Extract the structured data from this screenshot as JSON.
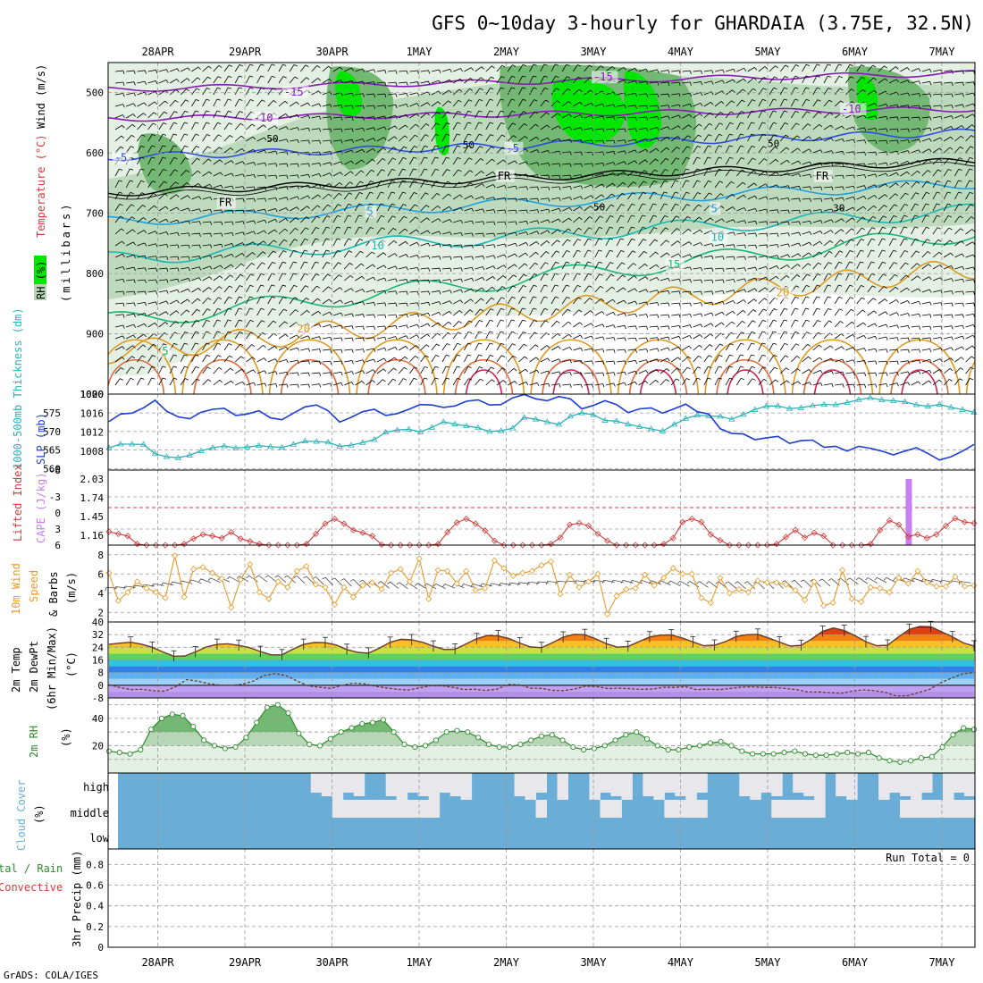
{
  "title": "GFS 0~10day 3-hourly for GHARDAIA (3.75E, 32.5N)",
  "credit": "GrADS: COLA/IGES",
  "dates": [
    "28APR",
    "29APR",
    "30APR",
    "1MAY",
    "2MAY",
    "3MAY",
    "4MAY",
    "5MAY",
    "6MAY",
    "7MAY"
  ],
  "colors": {
    "rh_light": "#e3f0e3",
    "rh_mid": "#b6d6b6",
    "rh_dark": "#73b873",
    "rh_bright": "#00e600",
    "slp": "#1c3fd0",
    "thickness": "#2cb0b8",
    "lifted": "#d23c3c",
    "cape": "#c880f0",
    "wind10": "#e89a28",
    "temp": "#6a3a28",
    "rh2m": "#2e8b2e",
    "cloud": "#6aaed8",
    "cloud_gap": "#e8e8ec"
  },
  "chart_data": [
    {
      "type": "heatmap",
      "panel": "upper-air",
      "ylabel": [
        "RH (%)",
        "Temperature (°C)",
        "Wind (m/s)",
        "(millibars)"
      ],
      "yticks": [
        500,
        600,
        700,
        800,
        900,
        1000
      ],
      "ylim": [
        1000,
        450
      ],
      "isotherm_labels": [
        {
          "t": 1.45,
          "p": 505,
          "text": "-15",
          "color": "#8a1ab8"
        },
        {
          "t": 5.0,
          "p": 480,
          "text": "-15",
          "color": "#8a1ab8"
        },
        {
          "t": 1.1,
          "p": 548,
          "text": "-10",
          "color": "#8a1ab8"
        },
        {
          "t": 7.85,
          "p": 533,
          "text": "-10",
          "color": "#8a1ab8"
        },
        {
          "t": -0.5,
          "p": 614,
          "text": "-5",
          "color": "#2d4ee0"
        },
        {
          "t": 4.0,
          "p": 598,
          "text": "-5",
          "color": "#2d4ee0"
        },
        {
          "t": 0.7,
          "p": 688,
          "text": "FR",
          "color": "#000000"
        },
        {
          "t": 3.9,
          "p": 644,
          "text": "FR",
          "color": "#000000"
        },
        {
          "t": 7.55,
          "p": 644,
          "text": "FR",
          "color": "#000000"
        },
        {
          "t": 2.4,
          "p": 703,
          "text": "5",
          "color": "#1fa0e0"
        },
        {
          "t": 6.35,
          "p": 698,
          "text": "5",
          "color": "#1fa0e0"
        },
        {
          "t": 2.45,
          "p": 760,
          "text": "10",
          "color": "#18b8b0"
        },
        {
          "t": 6.35,
          "p": 746,
          "text": "10",
          "color": "#18b8b0"
        },
        {
          "t": 5.85,
          "p": 791,
          "text": "15",
          "color": "#18b870"
        },
        {
          "t": 0.05,
          "p": 935,
          "text": "5",
          "color": "#18b870"
        },
        {
          "t": 1.6,
          "p": 898,
          "text": "20",
          "color": "#e09a20"
        },
        {
          "t": 7.1,
          "p": 838,
          "text": "20",
          "color": "#e09a20"
        }
      ],
      "rh_labels": [
        {
          "t": 1.25,
          "p": 582,
          "text": "50"
        },
        {
          "t": 3.5,
          "p": 592,
          "text": "50"
        },
        {
          "t": 5.0,
          "p": 695,
          "text": "50"
        },
        {
          "t": 7.75,
          "p": 697,
          "text": "30"
        },
        {
          "t": 7.0,
          "p": 590,
          "text": "50"
        }
      ]
    },
    {
      "type": "line",
      "panel": "slp-thickness",
      "ylabel_left": "1000-500mb Thickness (dm)",
      "ylabel_right": "SLP (mb)",
      "yticks_left": [
        560,
        565,
        570,
        575
      ],
      "yticks_right": [
        1008,
        1012,
        1016,
        1020
      ],
      "ylim_left": [
        559.6,
        580.1
      ],
      "ylim_right": [
        1004,
        1020
      ],
      "series": [
        {
          "name": "SLP (mb)",
          "values": [
            1014.2,
            1015.8,
            1016.0,
            1017.1,
            1018.7,
            1016.4,
            1015.2,
            1014.8,
            1016.2,
            1016.8,
            1017.0,
            1015.5,
            1015.8,
            1016.5,
            1015.0,
            1014.6,
            1016.0,
            1017.3,
            1017.7,
            1016.5,
            1014.1,
            1015.1,
            1016.3,
            1016.8,
            1015.5,
            1015.9,
            1016.8,
            1017.8,
            1017.7,
            1017.2,
            1017.5,
            1018.5,
            1018.8,
            1017.7,
            1017.8,
            1019.2,
            1019.9,
            1019.0,
            1018.6,
            1019.5,
            1019.0,
            1016.9,
            1017.6,
            1018.6,
            1017.8,
            1016.1,
            1016.9,
            1017.1,
            1016.0,
            1016.9,
            1017.9,
            1016.3,
            1015.8,
            1012.7,
            1011.7,
            1011.6,
            1010.4,
            1010.8,
            1011.1,
            1009.6,
            1010.2,
            1010.3,
            1008.8,
            1009.0,
            1008.0,
            1009.0,
            1008.6,
            1008.0,
            1007.2,
            1008.0,
            1008.7,
            1007.5,
            1006.1,
            1006.8,
            1008.0,
            1009.4
          ]
        },
        {
          "name": "1000-500mb Thickness (dm)",
          "values": [
            565.6,
            566.6,
            566.6,
            566.5,
            564.0,
            563.2,
            562.9,
            563.6,
            564.8,
            565.6,
            566.1,
            565.5,
            565.8,
            566.2,
            565.9,
            565.7,
            566.5,
            567.4,
            567.3,
            567.1,
            566.0,
            566.3,
            567.0,
            567.8,
            569.8,
            570.4,
            570.6,
            569.9,
            571.1,
            572.6,
            572.0,
            571.5,
            571.0,
            570.0,
            570.2,
            570.9,
            573.8,
            573.3,
            572.6,
            571.9,
            574.1,
            575.0,
            574.5,
            573.0,
            572.8,
            572.0,
            571.3,
            570.7,
            570.1,
            571.9,
            573.5,
            574.4,
            574.2,
            574.1,
            573.3,
            574.6,
            575.9,
            576.9,
            576.9,
            576.2,
            576.4,
            577.0,
            577.3,
            577.2,
            577.8,
            578.6,
            579.1,
            578.5,
            578.3,
            578.0,
            577.2,
            576.8,
            577.3,
            576.5,
            575.9,
            575.2
          ]
        }
      ]
    },
    {
      "type": "line",
      "panel": "lifted-cape",
      "ylabel_left": "Lifted Index",
      "ylabel_right": "CAPE (J/kg)",
      "yticks_left": [
        -8,
        -3,
        0,
        3,
        6
      ],
      "yticks_right": [
        1.16,
        1.45,
        1.74,
        2.03
      ],
      "ylim_left": [
        -8,
        6
      ],
      "series": [
        {
          "name": "Lifted Index",
          "values": [
            3.5,
            3.9,
            4.3,
            5.8,
            6.5,
            6.5,
            6.5,
            6.5,
            5.8,
            4.8,
            4.0,
            4.3,
            4.7,
            3.6,
            4.8,
            5.3,
            5.8,
            6.5,
            6.5,
            6.5,
            6.5,
            5.8,
            3.9,
            2.0,
            1.1,
            2.0,
            3.2,
            3.7,
            4.3,
            5.9,
            6.5,
            6.5,
            6.5,
            6.5,
            6.5,
            5.8,
            3.6,
            1.8,
            1.1,
            2.0,
            3.3,
            5.2,
            6.5,
            6.5,
            6.5,
            6.5,
            6.5,
            5.8,
            4.6,
            2.2,
            1.9,
            2.4,
            3.9,
            5.2,
            6.5,
            6.5,
            6.5,
            6.5,
            6.5,
            5.8,
            4.7,
            1.7,
            1.1,
            1.7,
            4.0,
            5.1,
            6.5,
            6.5,
            6.5,
            6.5,
            6.5,
            5.8,
            4.5,
            3.2,
            4.6,
            3.7,
            4.3,
            6.5,
            6.5,
            6.5,
            6.5,
            5.8,
            3.2,
            1.4,
            2.2,
            4.4,
            4.0,
            4.7,
            4.0,
            2.4,
            1.0,
            1.7,
            1.9
          ]
        },
        {
          "name": "CAPE (J/kg)",
          "bars": [
            {
              "t": 8.62,
              "value": 2.03
            }
          ]
        }
      ]
    },
    {
      "type": "line",
      "panel": "wind10m",
      "ylabel": [
        "10m Wind",
        "Speed",
        "& Barbs",
        "(m/s)"
      ],
      "yticks": [
        2,
        4,
        6,
        8
      ],
      "ylim": [
        1,
        9
      ],
      "series": [
        {
          "name": "10m Wind Speed",
          "values": [
            6.1,
            3.2,
            4.1,
            5.2,
            4.5,
            4.1,
            3.5,
            7.9,
            3.6,
            6.5,
            6.7,
            6.1,
            5.5,
            2.5,
            5.4,
            7.0,
            4.1,
            3.4,
            5.2,
            4.6,
            6.3,
            6.8,
            4.9,
            4.6,
            2.8,
            4.6,
            3.6,
            4.8,
            5.1,
            4.4,
            6.1,
            6.5,
            5.2,
            7.6,
            3.4,
            6.4,
            6.3,
            5.0,
            6.3,
            4.3,
            4.5,
            7.4,
            6.6,
            5.8,
            6.1,
            6.3,
            6.9,
            7.3,
            3.9,
            5.9,
            4.6,
            5.2,
            6.0,
            1.8,
            3.7,
            4.4,
            4.5,
            5.9,
            4.8,
            5.6,
            6.6,
            6.0,
            6.0,
            3.5,
            3.0,
            5.6,
            4.0,
            4.4,
            4.1,
            5.3,
            5.1,
            5.1,
            4.9,
            4.3,
            3.3,
            5.2,
            2.7,
            3.0,
            6.4,
            3.4,
            3.1,
            4.6,
            4.5,
            4.1,
            5.6,
            5.0,
            6.3,
            5.1,
            4.7,
            4.7,
            5.7,
            4.7,
            4.8
          ]
        }
      ]
    },
    {
      "type": "area",
      "panel": "temperature",
      "ylabel": [
        "2m Temp",
        "2m DewPt",
        "(6hr Min/Max)",
        "(°C)"
      ],
      "yticks": [
        -8,
        0,
        8,
        16,
        24,
        32,
        40
      ],
      "ylim": [
        -8,
        40
      ],
      "series": [
        {
          "name": "2m Temp",
          "values": [
            25.9,
            26.6,
            27.2,
            26.0,
            24.0,
            21.0,
            18.4,
            18.5,
            21.1,
            24.2,
            25.8,
            26.2,
            25.2,
            23.8,
            21.3,
            19.2,
            19.2,
            22.8,
            25.8,
            27.0,
            26.9,
            25.5,
            22.6,
            20.8,
            20.3,
            23.4,
            27.1,
            29.1,
            28.7,
            27.2,
            24.7,
            22.6,
            22.8,
            26.0,
            29.4,
            31.4,
            31.2,
            29.5,
            26.7,
            24.2,
            23.8,
            26.9,
            30.4,
            32.2,
            32.0,
            29.3,
            26.3,
            24.1,
            24.5,
            27.6,
            30.5,
            31.7,
            31.8,
            29.9,
            27.4,
            25.0,
            25.3,
            27.6,
            30.8,
            32.0,
            32.2,
            29.9,
            27.3,
            24.8,
            25.2,
            29.4,
            34.1,
            36.2,
            34.6,
            31.3,
            27.5,
            25.0,
            25.3,
            30.5,
            35.3,
            37.2,
            37.0,
            33.8,
            30.6,
            26.8,
            24.8
          ]
        },
        {
          "name": "2m DewPt",
          "values": [
            0.4,
            -1.5,
            -2.7,
            -2.5,
            -3.5,
            -3.7,
            -1.0,
            3.6,
            2.6,
            1.0,
            0.2,
            0.0,
            0.6,
            2.6,
            6.2,
            7.4,
            6.0,
            2.6,
            -0.5,
            -1.2,
            -2.0,
            -0.1,
            1.4,
            1.0,
            -0.6,
            -1.7,
            -2.6,
            -3.0,
            -1.7,
            -0.3,
            -0.4,
            -1.3,
            -2.7,
            -2.5,
            -3.3,
            -2.4,
            0.5,
            0.3,
            -1.8,
            -2.0,
            -3.2,
            -3.4,
            -2.3,
            -0.5,
            -0.9,
            -2.1,
            -1.8,
            -2.2,
            -2.6,
            -2.4,
            -1.3,
            -1.4,
            -0.9,
            -2.8,
            -2.4,
            -2.8,
            -2.0,
            -1.2,
            -1.0,
            -1.4,
            -1.4,
            -2.0,
            -2.8,
            -4.3,
            -4.2,
            -4.6,
            -5.1,
            -3.7,
            -2.9,
            -3.4,
            -4.5,
            -6.8,
            -6.6,
            -4.6,
            -2.6,
            1.6,
            4.6,
            7.3,
            8.0
          ]
        }
      ]
    },
    {
      "type": "area",
      "panel": "rh2m",
      "ylabel": [
        "2m RH",
        "(%)"
      ],
      "yticks": [
        20,
        40
      ],
      "ylim": [
        0,
        55
      ],
      "series": [
        {
          "name": "2m RH",
          "values": [
            16,
            15,
            14,
            17,
            32,
            40,
            43,
            42,
            34,
            24,
            20,
            18,
            19,
            26,
            37,
            48,
            50,
            44,
            29,
            21,
            20,
            25,
            30,
            33,
            36,
            37,
            39,
            30,
            21,
            19,
            20,
            24,
            30,
            31,
            30,
            26,
            21,
            19,
            19,
            21,
            24,
            27,
            28,
            24,
            19,
            17,
            18,
            20,
            24,
            28,
            30,
            25,
            20,
            17,
            17,
            19,
            20,
            22,
            23,
            20,
            16,
            14,
            14,
            14,
            15,
            16,
            14,
            13,
            13,
            14,
            15,
            14,
            15,
            11,
            9,
            8,
            9,
            11,
            12,
            19,
            28,
            33,
            32
          ]
        }
      ]
    },
    {
      "type": "heatmap",
      "panel": "cloud-cover",
      "ylabel": [
        "Cloud Cover",
        "(%)"
      ],
      "levels": [
        "high",
        "middle",
        "low"
      ]
    },
    {
      "type": "bar",
      "panel": "precip",
      "ylabel": [
        "3hr Precip (mm)"
      ],
      "legend_left": [
        "tal / Rain",
        "Convective"
      ],
      "yticks": [
        0,
        0.2,
        0.4,
        0.6,
        0.8
      ],
      "ylim": [
        0,
        0.95
      ],
      "run_total_label": "Run Total = 0",
      "values": []
    }
  ]
}
